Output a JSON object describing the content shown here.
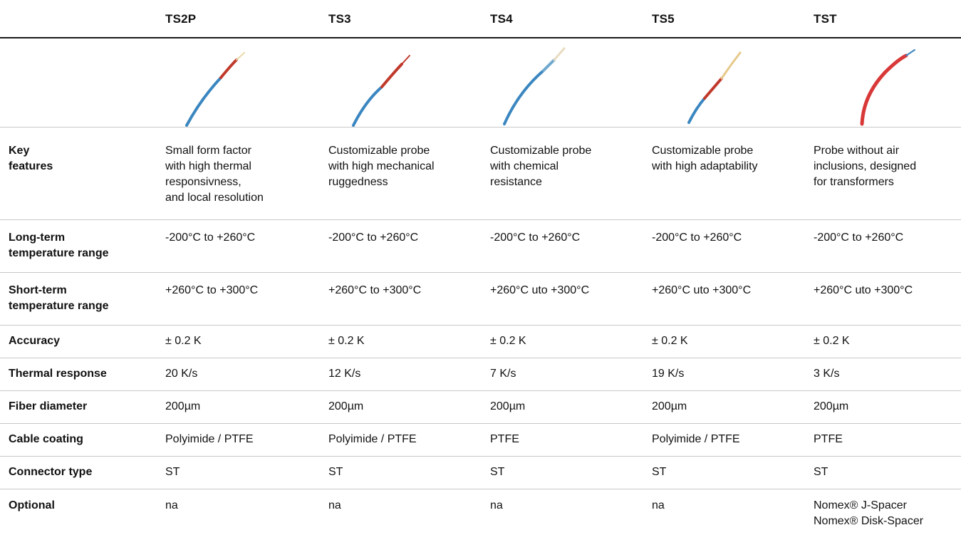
{
  "columns": [
    "TS2P",
    "TS3",
    "TS4",
    "TS5",
    "TST"
  ],
  "probe_images": [
    {
      "name": "ts2p-probe",
      "colors": [
        "#3a86c0",
        "#c0392b",
        "#e8d9a8"
      ]
    },
    {
      "name": "ts3-probe",
      "colors": [
        "#3a86c0",
        "#c0392b",
        "#c0392b"
      ]
    },
    {
      "name": "ts4-probe",
      "colors": [
        "#3a86c0",
        "#6fa8cf",
        "#e8dcc0"
      ]
    },
    {
      "name": "ts5-probe",
      "colors": [
        "#3a86c0",
        "#c0392b",
        "#e6c98a"
      ]
    },
    {
      "name": "tst-probe",
      "colors": [
        "#d93838",
        "#d93838",
        "#3a86c0"
      ]
    }
  ],
  "rows": [
    {
      "label": "Key\nfeatures",
      "values": [
        "Small form factor\nwith high thermal\nresponsivness,\nand local resolution",
        "Customizable probe\nwith high mechanical\nruggedness",
        "Customizable probe\nwith chemical\nresistance",
        "Customizable probe\nwith high adaptability",
        "Probe without air\ninclusions, designed\nfor transformers"
      ]
    },
    {
      "label": "Long-term\ntemperature range",
      "values": [
        "-200°C  to +260°C",
        "-200°C to +260°C",
        "-200°C to +260°C",
        "-200°C  to +260°C",
        "-200°C  to +260°C"
      ]
    },
    {
      "label": "Short-term\ntemperature range",
      "values": [
        "+260°C to +300°C",
        "+260°C  to +300°C",
        "+260°C uto +300°C",
        "+260°C uto +300°C",
        "+260°C uto +300°C"
      ]
    },
    {
      "label": "Accuracy",
      "values": [
        "± 0.2 K",
        "± 0.2 K",
        "± 0.2 K",
        "± 0.2 K",
        "± 0.2 K"
      ]
    },
    {
      "label": "Thermal response",
      "values": [
        "20 K/s",
        "12 K/s",
        "7 K/s",
        "19 K/s",
        "3 K/s"
      ]
    },
    {
      "label": "Fiber diameter",
      "values": [
        "200µm",
        "200µm",
        "200µm",
        "200µm",
        "200µm"
      ]
    },
    {
      "label": "Cable coating",
      "values": [
        "Polyimide / PTFE",
        "Polyimide / PTFE",
        "PTFE",
        "Polyimide / PTFE",
        "PTFE"
      ]
    },
    {
      "label": "Connector type",
      "values": [
        "ST",
        "ST",
        "ST",
        "ST",
        "ST"
      ]
    },
    {
      "label": "Optional",
      "values": [
        "na",
        "na",
        "na",
        "na",
        "Nomex® J-Spacer\nNomex® Disk-Spacer"
      ]
    }
  ]
}
